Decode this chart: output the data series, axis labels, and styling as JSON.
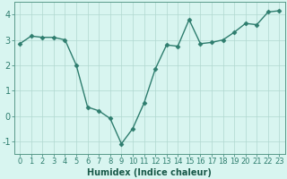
{
  "x": [
    0,
    1,
    2,
    3,
    4,
    5,
    6,
    7,
    8,
    9,
    10,
    11,
    12,
    13,
    14,
    15,
    16,
    17,
    18,
    19,
    20,
    21,
    22,
    23
  ],
  "y": [
    2.85,
    3.15,
    3.1,
    3.1,
    3.0,
    2.0,
    0.35,
    0.2,
    -0.1,
    -1.1,
    -0.5,
    0.5,
    1.85,
    2.8,
    2.75,
    3.8,
    2.85,
    2.9,
    3.0,
    3.3,
    3.65,
    3.6,
    4.1,
    4.15
  ],
  "line_color": "#2e7d6e",
  "marker": "D",
  "marker_size": 2.5,
  "linewidth": 1.0,
  "bg_color": "#d8f5f0",
  "grid_color": "#b0d8d0",
  "axis_color": "#5a9a8a",
  "tick_color": "#2e7d6e",
  "xlabel": "Humidex (Indice chaleur)",
  "xlabel_fontsize": 7,
  "xlabel_color": "#1a5a4a",
  "ylabel_fontsize": 7,
  "tick_fontsize": 6,
  "ylim": [
    -1.5,
    4.5
  ],
  "xlim": [
    -0.5,
    23.5
  ],
  "yticks": [
    -1,
    0,
    1,
    2,
    3,
    4
  ],
  "xticks": [
    0,
    1,
    2,
    3,
    4,
    5,
    6,
    7,
    8,
    9,
    10,
    11,
    12,
    13,
    14,
    15,
    16,
    17,
    18,
    19,
    20,
    21,
    22,
    23
  ]
}
